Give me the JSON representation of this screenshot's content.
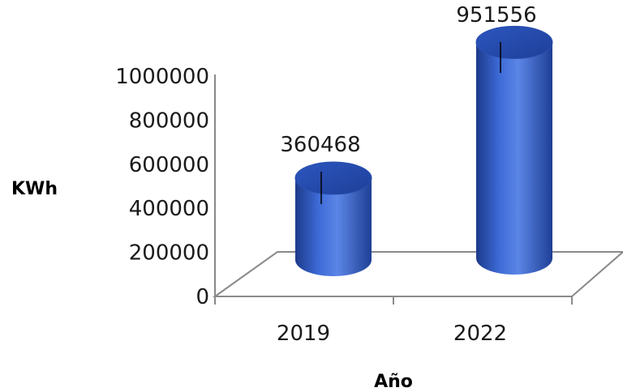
{
  "chart_data": {
    "type": "bar",
    "style": "3d-cylinder",
    "categories": [
      "2019",
      "2022"
    ],
    "series": [
      {
        "values": [
          360468,
          951556
        ]
      }
    ],
    "data_labels": [
      "360468",
      "951556"
    ],
    "xlabel": "Año",
    "ylabel": "KWh",
    "ylim": [
      0,
      1000000
    ],
    "yticks": [
      "0",
      "200000",
      "400000",
      "600000",
      "800000",
      "1000000"
    ],
    "ytick_values": [
      0,
      200000,
      400000,
      600000,
      800000,
      1000000
    ],
    "grid": false,
    "legend": "none",
    "colors": {
      "bar": "#2f5cc4",
      "bar_dark": "#1c3a8a",
      "bar_light": "#6f95ee",
      "floor_stroke": "#8a8a8a"
    }
  }
}
